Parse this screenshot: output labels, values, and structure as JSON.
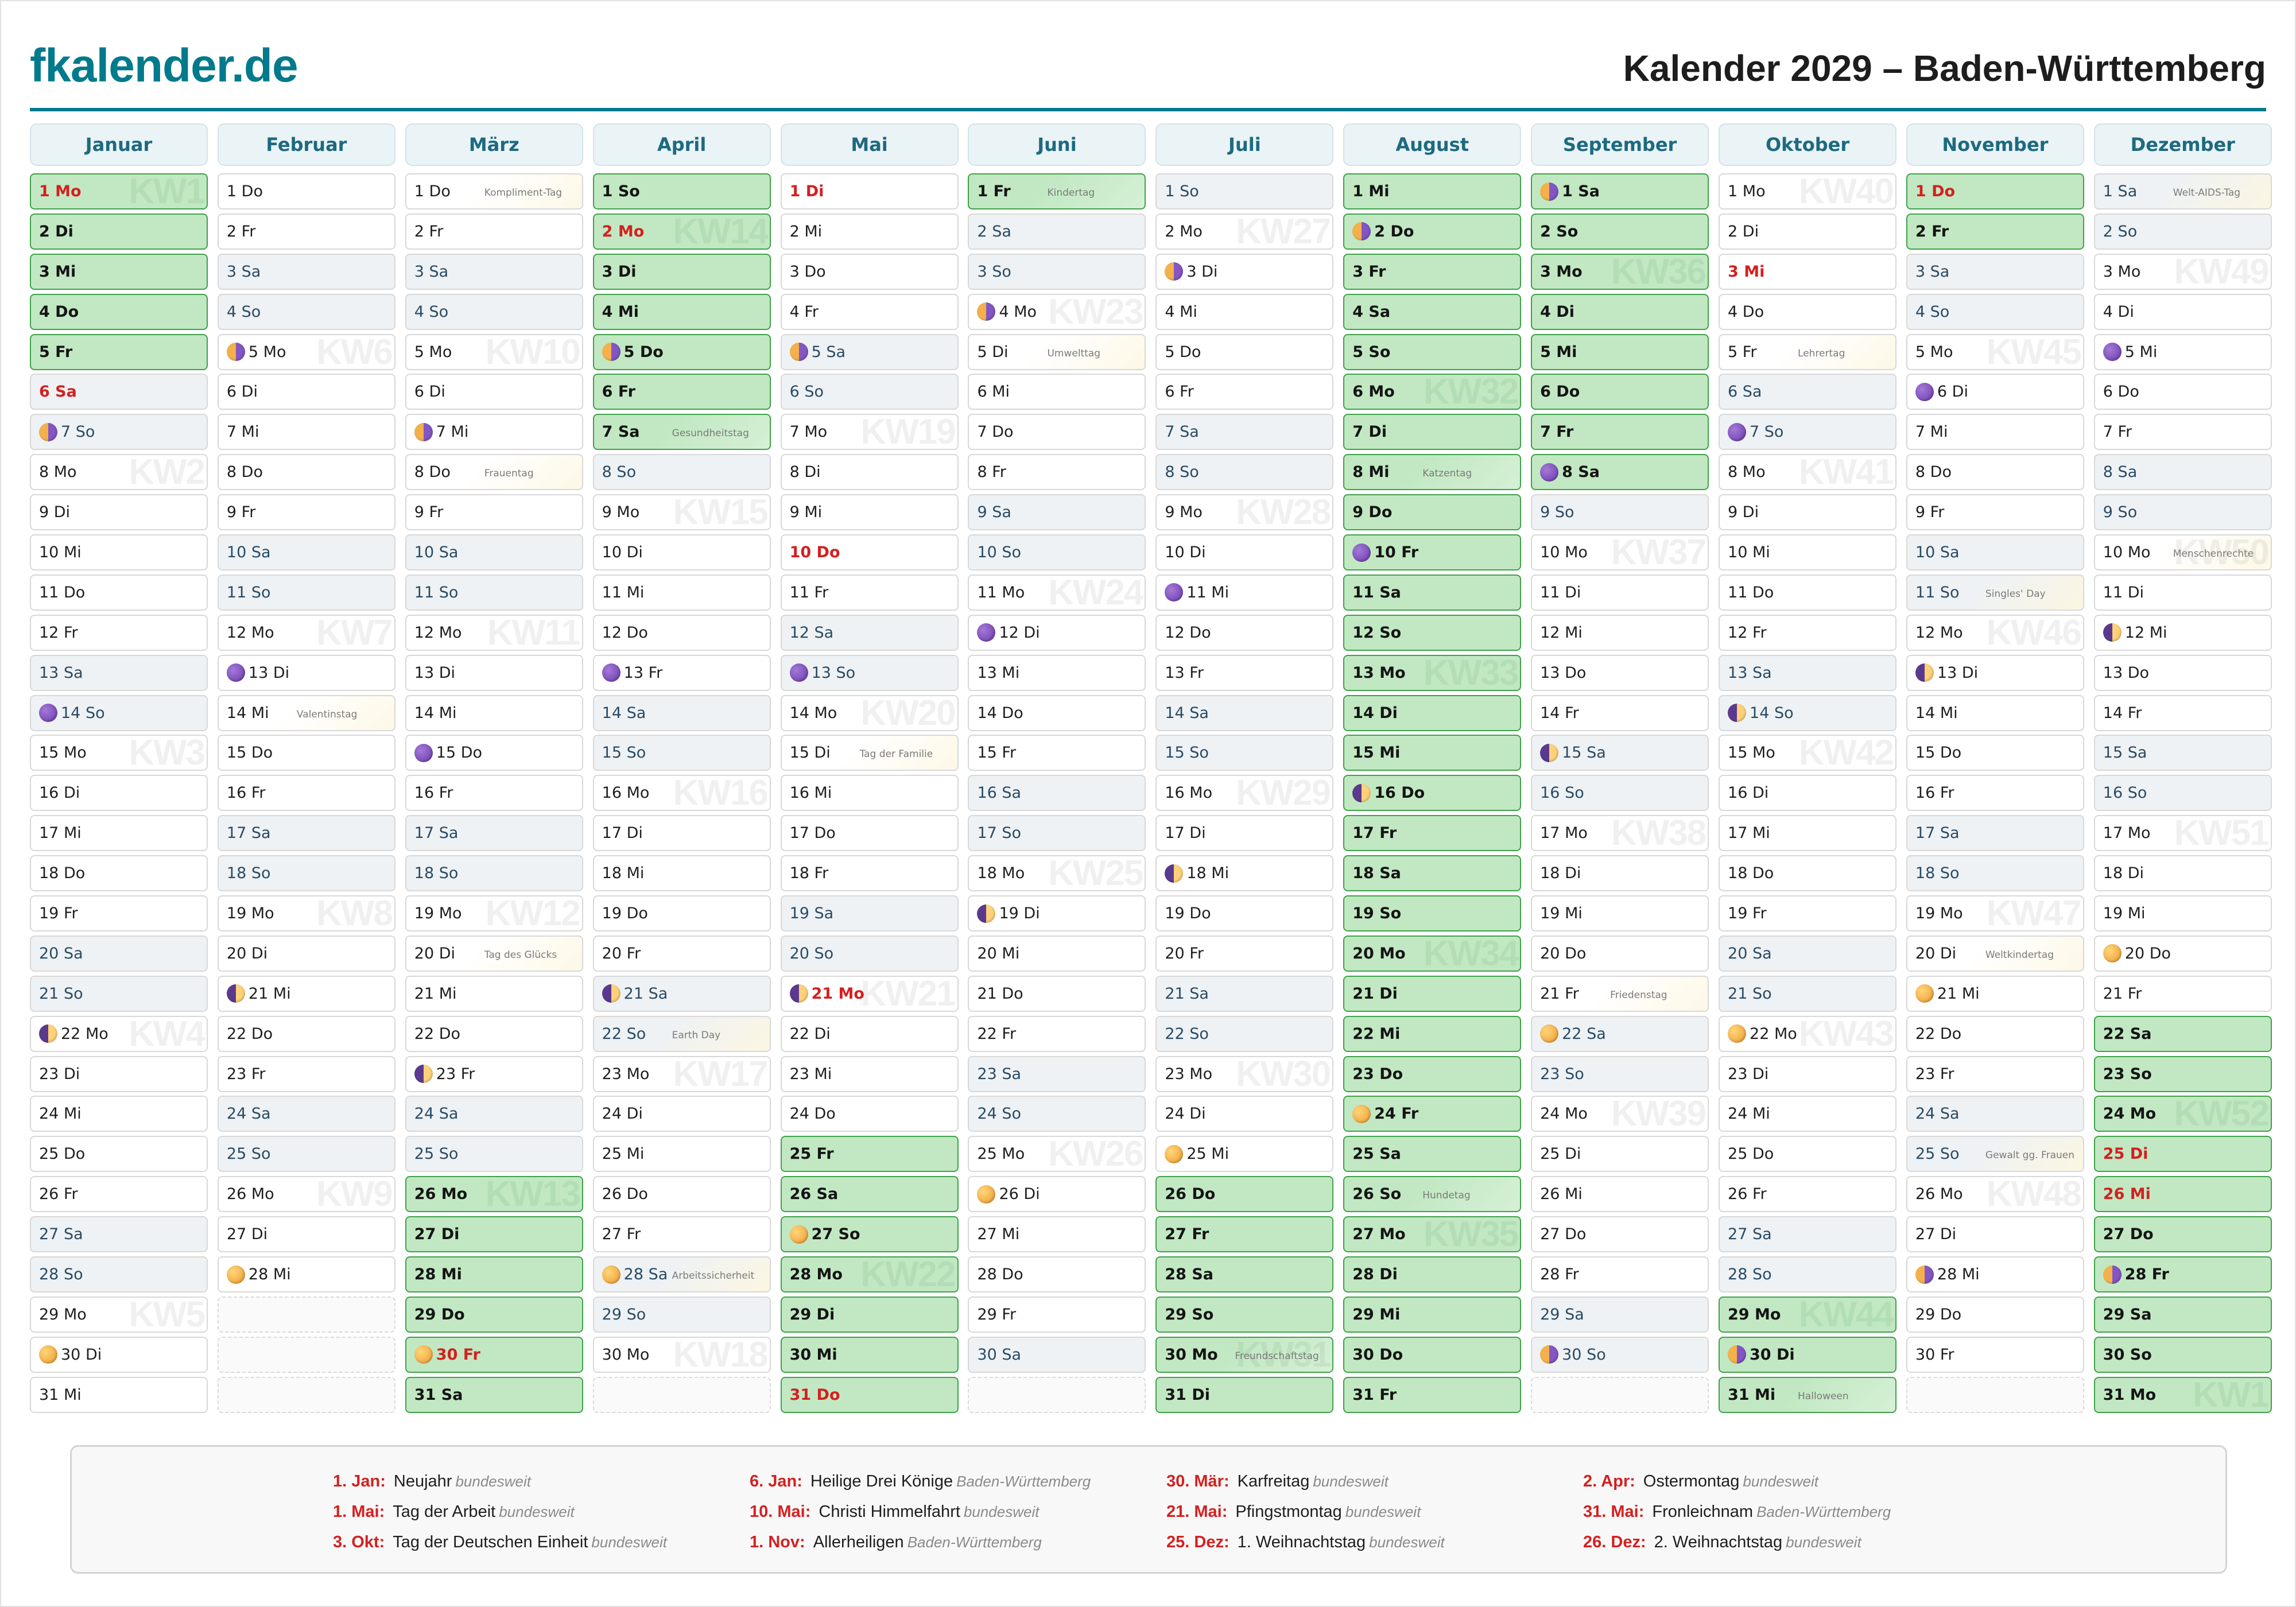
{
  "header": {
    "logo": "fkalender.de",
    "title": "Kalender 2029 – Baden-Württemberg"
  },
  "colors": {
    "brand": "#007a8c",
    "holiday": "#d42020",
    "vacation_bg": "#c1e8c2",
    "vacation_border": "#3fa14a",
    "weekend_bg": "#eef2f5",
    "month_header_bg": "#eaf3f6"
  },
  "weekdays": [
    "Mo",
    "Di",
    "Mi",
    "Do",
    "Fr",
    "Sa",
    "So"
  ],
  "kw_prefix": "KW",
  "moon_legend": {
    "full": "full-moon-icon",
    "new": "new-moon-icon",
    "fq": "first-quarter-moon-icon",
    "lq": "last-quarter-moon-icon"
  },
  "months": [
    {
      "name": "Januar",
      "days": 31,
      "first_weekday": 0,
      "vacation": [
        [
          1,
          5
        ]
      ],
      "holidays": [
        1,
        6
      ],
      "moons": {
        "7": "lq",
        "14": "new",
        "22": "fq",
        "30": "full"
      },
      "special": {},
      "kw": {
        "1": "1",
        "8": "2",
        "15": "3",
        "22": "4",
        "29": "5"
      }
    },
    {
      "name": "Februar",
      "days": 28,
      "first_weekday": 3,
      "vacation": [],
      "holidays": [],
      "moons": {
        "5": "lq",
        "13": "new",
        "21": "fq",
        "28": "full"
      },
      "special": {
        "14": "Valentinstag"
      },
      "kw": {
        "5": "6",
        "12": "7",
        "19": "8",
        "26": "9"
      }
    },
    {
      "name": "März",
      "days": 31,
      "first_weekday": 3,
      "vacation": [
        [
          26,
          31
        ]
      ],
      "holidays": [
        30
      ],
      "moons": {
        "7": "lq",
        "15": "new",
        "23": "fq",
        "30": "full"
      },
      "special": {
        "1": "Kompliment-Tag",
        "8": "Frauentag",
        "20": "Tag des Glücks"
      },
      "kw": {
        "5": "10",
        "12": "11",
        "19": "12",
        "26": "13"
      }
    },
    {
      "name": "April",
      "days": 30,
      "first_weekday": 6,
      "vacation": [
        [
          1,
          7
        ]
      ],
      "holidays": [
        2
      ],
      "moons": {
        "5": "lq",
        "13": "new",
        "21": "fq",
        "28": "full"
      },
      "special": {
        "7": "Gesundheitstag",
        "22": "Earth Day",
        "28": "Arbeitssicherheit"
      },
      "kw": {
        "2": "14",
        "9": "15",
        "16": "16",
        "23": "17",
        "30": "18"
      }
    },
    {
      "name": "Mai",
      "days": 31,
      "first_weekday": 1,
      "vacation": [
        [
          25,
          31
        ]
      ],
      "holidays": [
        1,
        10,
        21,
        31
      ],
      "moons": {
        "5": "lq",
        "13": "new",
        "21": "fq",
        "27": "full"
      },
      "special": {
        "15": "Tag der Familie"
      },
      "kw": {
        "7": "19",
        "14": "20",
        "21": "21",
        "28": "22"
      }
    },
    {
      "name": "Juni",
      "days": 30,
      "first_weekday": 4,
      "vacation": [
        [
          1,
          1
        ]
      ],
      "holidays": [],
      "moons": {
        "4": "lq",
        "12": "new",
        "19": "fq",
        "26": "full"
      },
      "special": {
        "1": "Kindertag",
        "5": "Umwelttag"
      },
      "kw": {
        "4": "23",
        "11": "24",
        "18": "25",
        "25": "26"
      }
    },
    {
      "name": "Juli",
      "days": 31,
      "first_weekday": 6,
      "vacation": [
        [
          26,
          31
        ]
      ],
      "holidays": [],
      "moons": {
        "3": "lq",
        "11": "new",
        "18": "fq",
        "25": "full"
      },
      "special": {
        "30": "Freundschaftstag"
      },
      "kw": {
        "2": "27",
        "9": "28",
        "16": "29",
        "23": "30",
        "30": "31"
      }
    },
    {
      "name": "August",
      "days": 31,
      "first_weekday": 2,
      "vacation": [
        [
          1,
          31
        ]
      ],
      "holidays": [],
      "moons": {
        "2": "lq",
        "10": "new",
        "16": "fq",
        "24": "full"
      },
      "special": {
        "8": "Katzentag",
        "26": "Hundetag"
      },
      "kw": {
        "6": "32",
        "13": "33",
        "20": "34",
        "27": "35"
      }
    },
    {
      "name": "September",
      "days": 30,
      "first_weekday": 5,
      "vacation": [
        [
          1,
          8
        ]
      ],
      "holidays": [],
      "moons": {
        "1": "lq",
        "8": "new",
        "15": "fq",
        "22": "full",
        "30": "lq"
      },
      "special": {
        "21": "Friedenstag"
      },
      "kw": {
        "3": "36",
        "10": "37",
        "17": "38",
        "24": "39"
      }
    },
    {
      "name": "Oktober",
      "days": 31,
      "first_weekday": 0,
      "vacation": [
        [
          29,
          31
        ]
      ],
      "holidays": [
        3
      ],
      "moons": {
        "7": "new",
        "14": "fq",
        "22": "full",
        "30": "lq"
      },
      "special": {
        "5": "Lehrertag",
        "31": "Halloween"
      },
      "kw": {
        "1": "40",
        "8": "41",
        "15": "42",
        "22": "43",
        "29": "44"
      }
    },
    {
      "name": "November",
      "days": 30,
      "first_weekday": 3,
      "vacation": [
        [
          1,
          2
        ]
      ],
      "holidays": [
        1
      ],
      "moons": {
        "6": "new",
        "13": "fq",
        "21": "full",
        "28": "lq"
      },
      "special": {
        "11": "Singles' Day",
        "20": "Weltkindertag",
        "25": "Gewalt gg. Frauen"
      },
      "kw": {
        "5": "45",
        "12": "46",
        "19": "47",
        "26": "48"
      }
    },
    {
      "name": "Dezember",
      "days": 31,
      "first_weekday": 5,
      "vacation": [
        [
          22,
          31
        ]
      ],
      "holidays": [
        25,
        26
      ],
      "moons": {
        "5": "new",
        "12": "fq",
        "20": "full",
        "28": "lq"
      },
      "special": {
        "1": "Welt-AIDS-Tag",
        "10": "Menschenrechte"
      },
      "kw": {
        "3": "49",
        "10": "50",
        "17": "51",
        "24": "52",
        "31": "1"
      }
    }
  ],
  "legend": [
    {
      "date": "1. Jan:",
      "name": "Neujahr",
      "scope": "bundesweit"
    },
    {
      "date": "6. Jan:",
      "name": "Heilige Drei Könige",
      "scope": "Baden-Württemberg"
    },
    {
      "date": "30. Mär:",
      "name": "Karfreitag",
      "scope": "bundesweit"
    },
    {
      "date": "2. Apr:",
      "name": "Ostermontag",
      "scope": "bundesweit"
    },
    {
      "date": "1. Mai:",
      "name": "Tag der Arbeit",
      "scope": "bundesweit"
    },
    {
      "date": "10. Mai:",
      "name": "Christi Himmelfahrt",
      "scope": "bundesweit"
    },
    {
      "date": "21. Mai:",
      "name": "Pfingstmontag",
      "scope": "bundesweit"
    },
    {
      "date": "31. Mai:",
      "name": "Fronleichnam",
      "scope": "Baden-Württemberg"
    },
    {
      "date": "3. Okt:",
      "name": "Tag der Deutschen Einheit",
      "scope": "bundesweit"
    },
    {
      "date": "1. Nov:",
      "name": "Allerheiligen",
      "scope": "Baden-Württemberg"
    },
    {
      "date": "25. Dez:",
      "name": "1. Weihnachtstag",
      "scope": "bundesweit"
    },
    {
      "date": "26. Dez:",
      "name": "2. Weihnachtstag",
      "scope": "bundesweit"
    }
  ]
}
